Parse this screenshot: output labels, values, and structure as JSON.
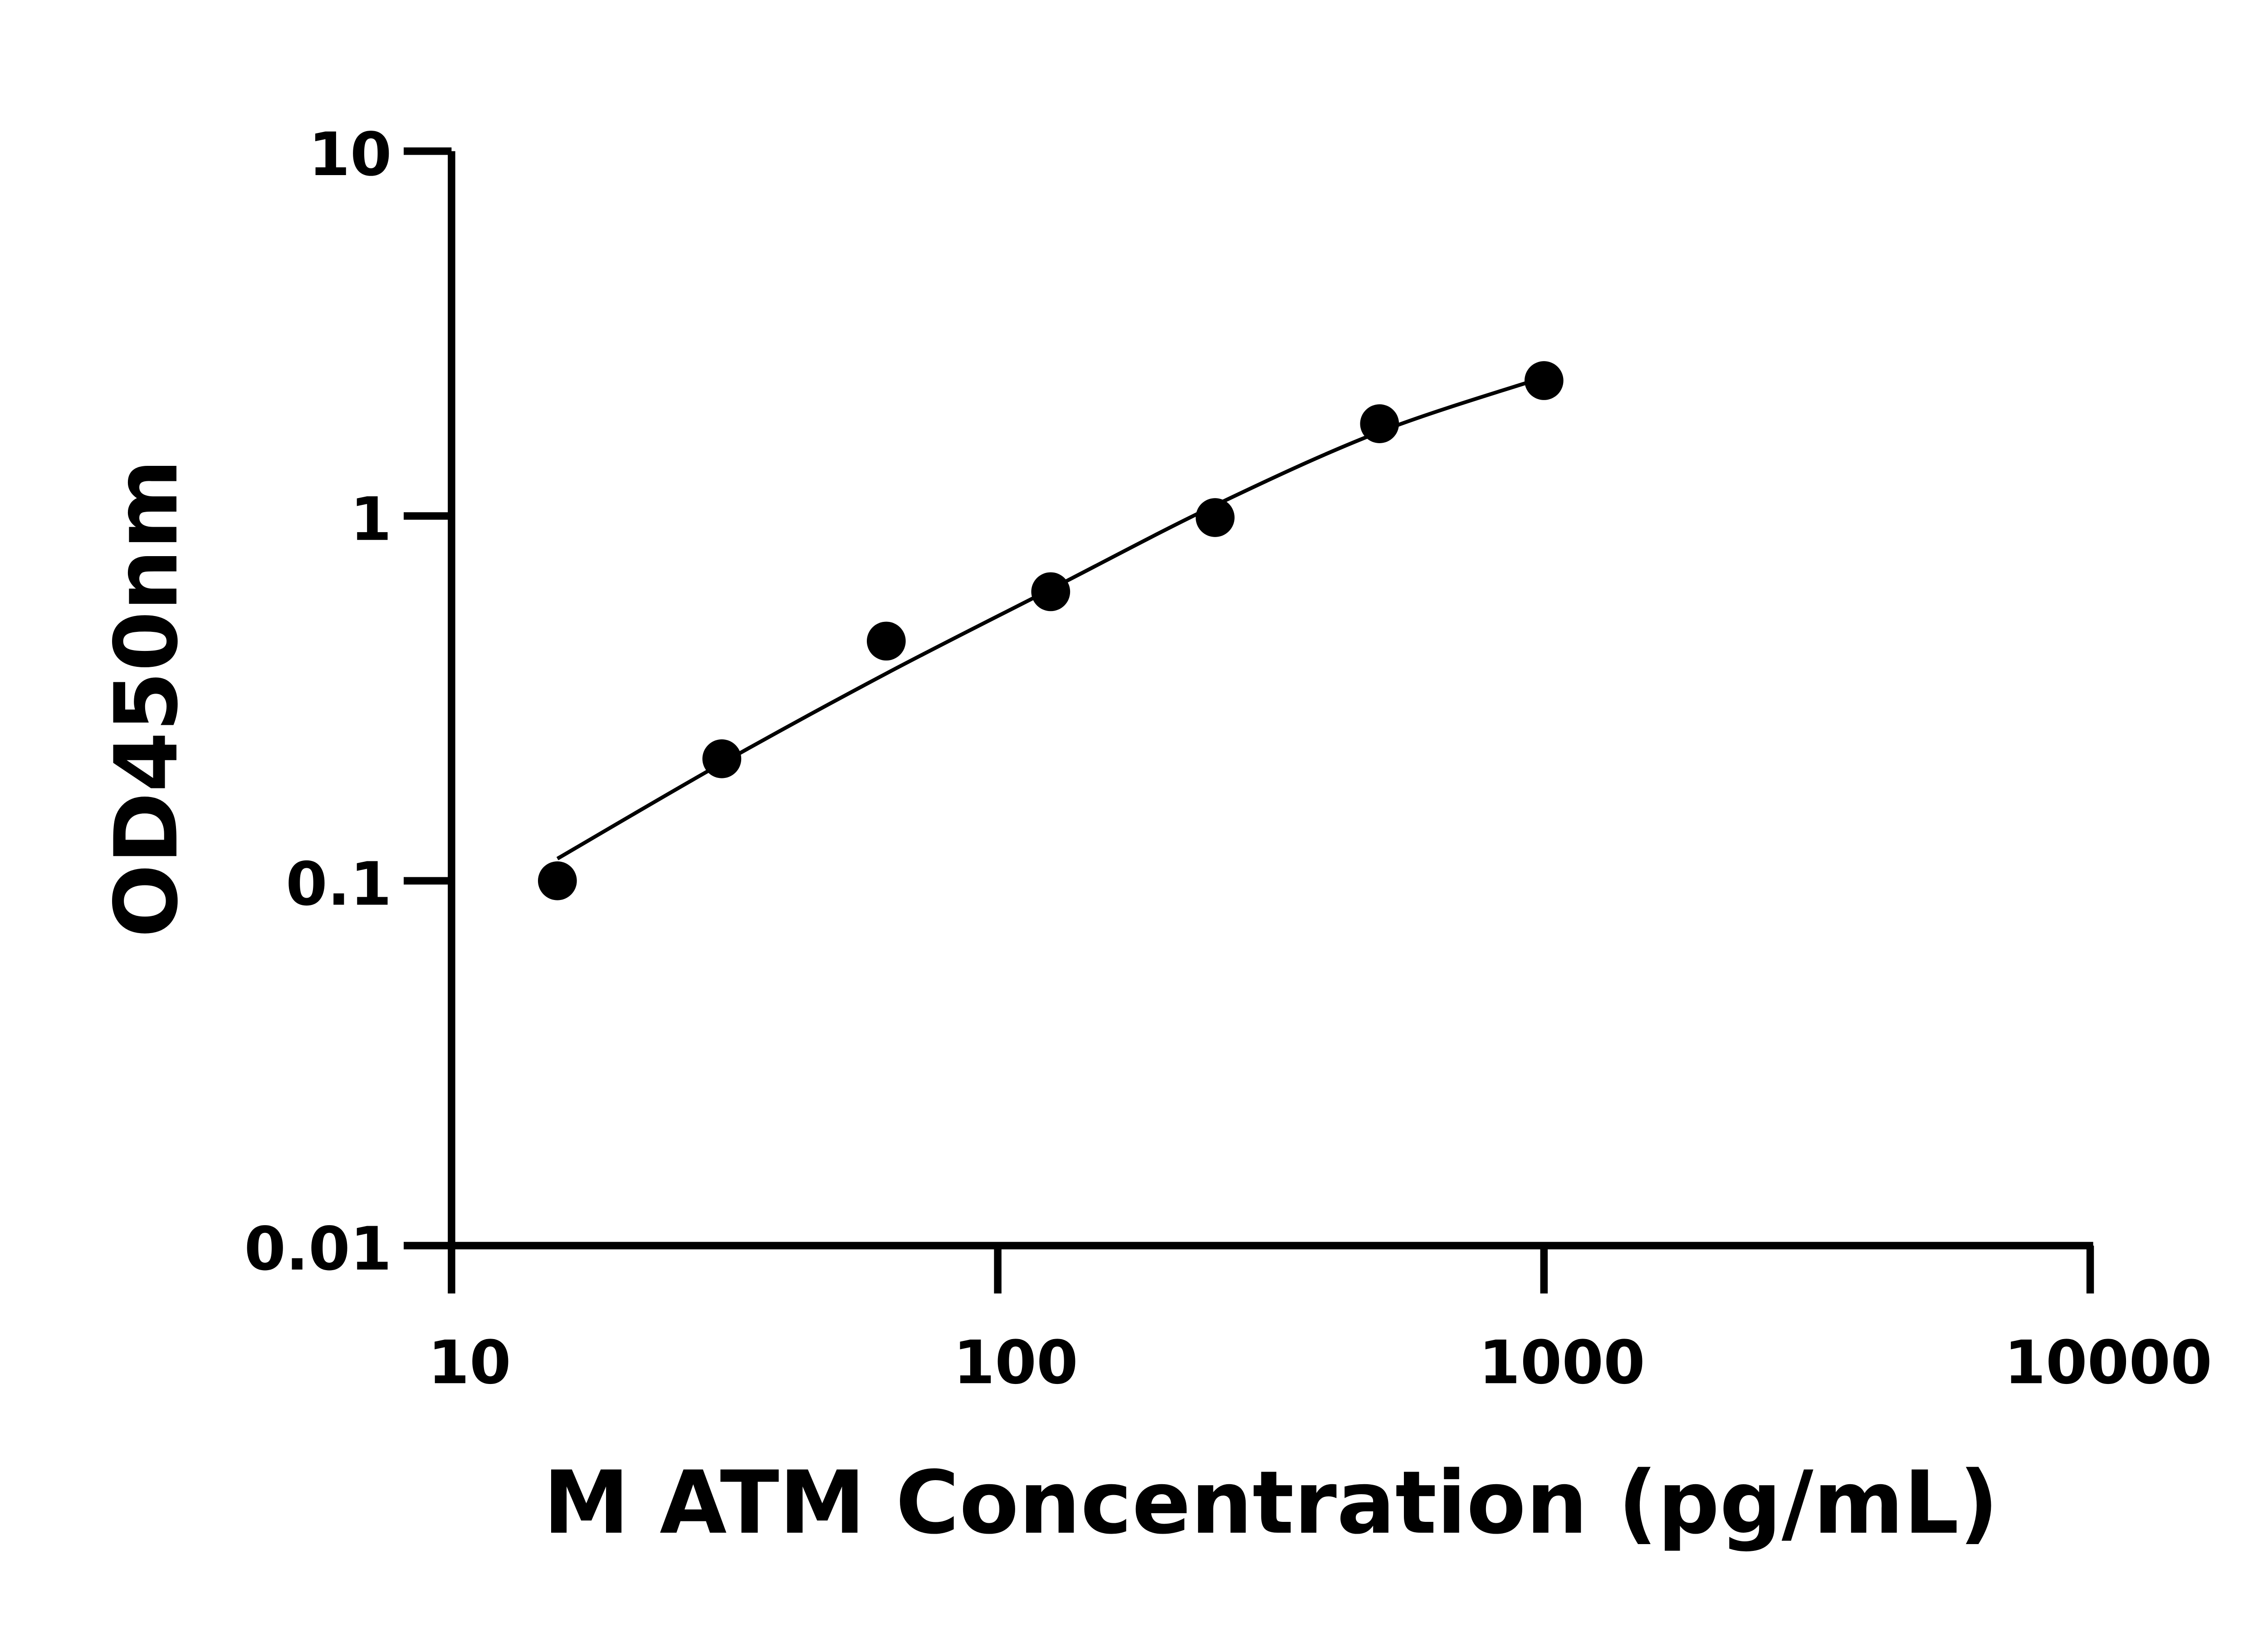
{
  "chart_data": {
    "type": "scatter",
    "xlabel": "M ATM Concentration (pg/mL)",
    "ylabel": "OD450nm",
    "x_scale": "log",
    "y_scale": "log",
    "xlim": [
      10,
      10000
    ],
    "ylim": [
      0.01,
      10
    ],
    "x_ticks": [
      "10",
      "100",
      "1000",
      "10000"
    ],
    "y_ticks": [
      "0.01",
      "0.1",
      "1",
      "10"
    ],
    "grid": false,
    "legend": "none",
    "points": [
      {
        "x": 15.625,
        "y": 0.1
      },
      {
        "x": 31.25,
        "y": 0.216
      },
      {
        "x": 62.5,
        "y": 0.454
      },
      {
        "x": 125,
        "y": 0.62
      },
      {
        "x": 250,
        "y": 0.99
      },
      {
        "x": 500,
        "y": 1.79
      },
      {
        "x": 1000,
        "y": 2.35
      }
    ],
    "fit_curve": [
      {
        "x": 15.625,
        "y": 0.115
      },
      {
        "x": 31.25,
        "y": 0.21
      },
      {
        "x": 62.5,
        "y": 0.37
      },
      {
        "x": 125,
        "y": 0.63
      },
      {
        "x": 250,
        "y": 1.07
      },
      {
        "x": 500,
        "y": 1.7
      },
      {
        "x": 1000,
        "y": 2.4
      }
    ],
    "colors": {
      "points": "#000000",
      "line": "#000000",
      "axes": "#000000"
    }
  }
}
